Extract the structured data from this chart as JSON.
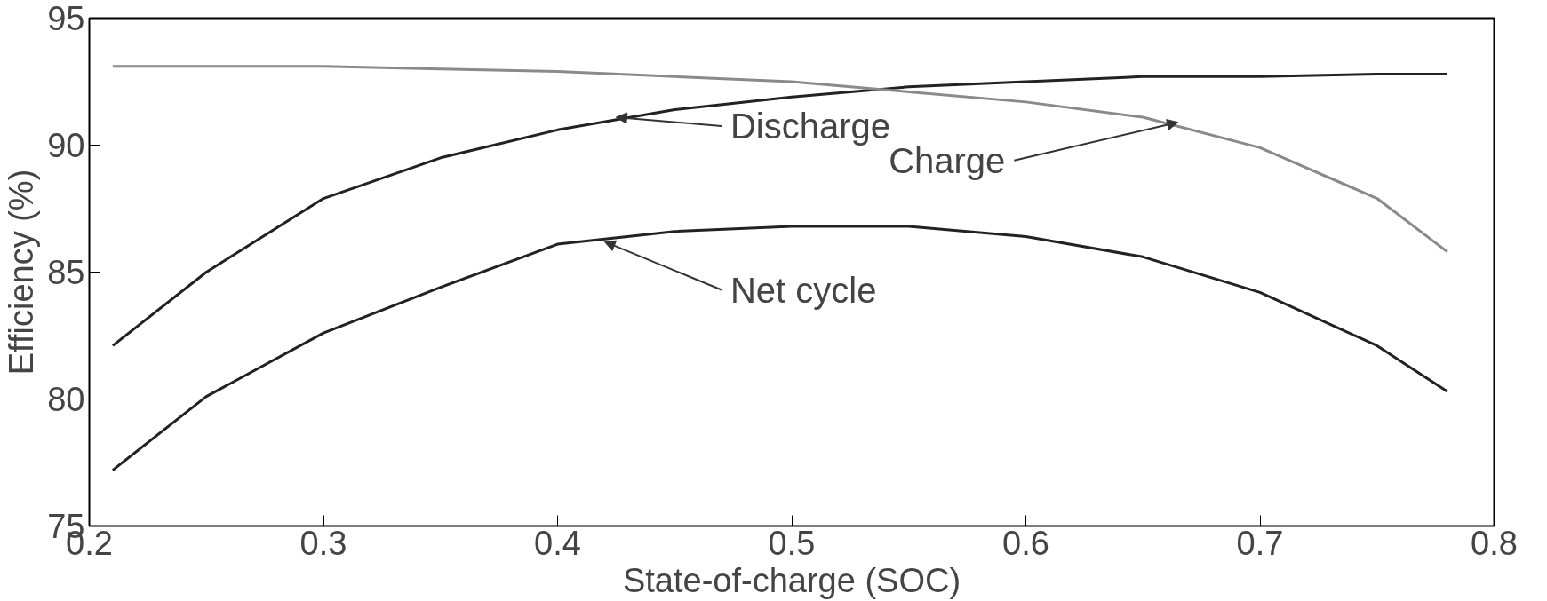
{
  "chart_data": {
    "type": "line",
    "xlabel": "State-of-charge (SOC)",
    "ylabel": "Efficiency (%)",
    "xlim": [
      0.2,
      0.8
    ],
    "ylim": [
      75,
      95
    ],
    "xticks": [
      0.2,
      0.3,
      0.4,
      0.5,
      0.6,
      0.7,
      0.8
    ],
    "yticks": [
      75,
      80,
      85,
      90,
      95
    ],
    "grid": false,
    "marker": "none",
    "line_style": "solid",
    "x": [
      0.21,
      0.25,
      0.3,
      0.35,
      0.4,
      0.45,
      0.5,
      0.55,
      0.6,
      0.65,
      0.7,
      0.75,
      0.78
    ],
    "series": [
      {
        "color": "#222222",
        "values": [
          82.1,
          85.0,
          87.9,
          89.5,
          90.6,
          91.4,
          91.9,
          92.3,
          92.5,
          92.7,
          92.7,
          92.8,
          92.8
        ]
      },
      {
        "color": "#8a8a8a",
        "values": [
          93.1,
          93.1,
          93.1,
          93.0,
          92.9,
          92.7,
          92.5,
          92.1,
          91.7,
          91.1,
          89.9,
          87.9,
          85.8
        ]
      },
      {
        "color": "#222222",
        "values": [
          77.2,
          80.1,
          82.6,
          84.4,
          86.1,
          86.6,
          86.8,
          86.8,
          86.4,
          85.6,
          84.2,
          82.1,
          80.3
        ]
      }
    ],
    "annotations": [
      {
        "text": "Discharge",
        "x": 0.425,
        "y": 91.1
      },
      {
        "text": "Charge",
        "x": 0.665,
        "y": 90.9
      },
      {
        "text": "Net cycle",
        "x": 0.42,
        "y": 86.2
      }
    ]
  }
}
